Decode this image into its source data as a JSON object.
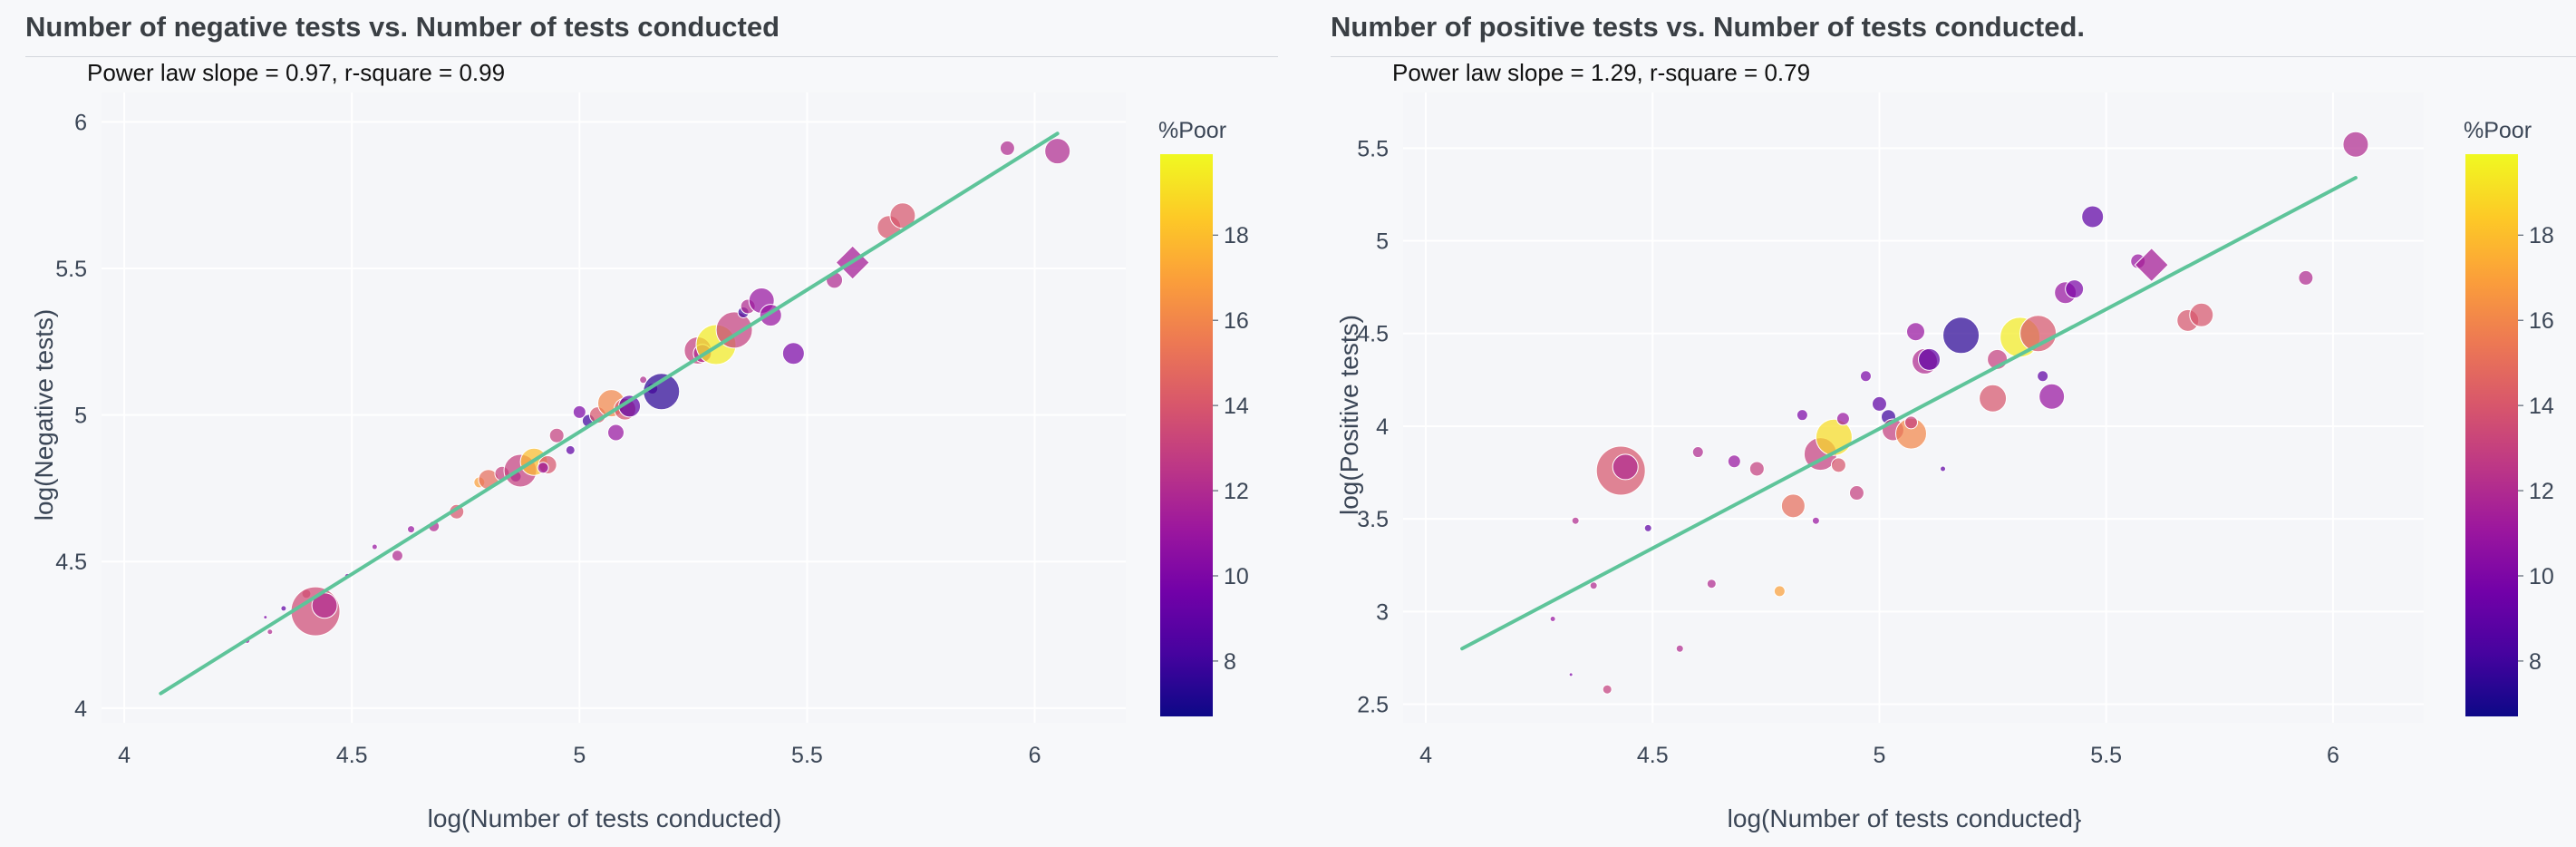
{
  "colors": {
    "line": "#5ec49a",
    "grid": "#ffffff",
    "plot_bg": "#f5f6f9",
    "axis_text": "#3b4656",
    "colorscale": [
      "#0d0887",
      "#46039f",
      "#7201a8",
      "#9c179e",
      "#bd3786",
      "#d8576b",
      "#ed7953",
      "#fb9f3a",
      "#fdca26",
      "#f0f921"
    ]
  },
  "chart_data": [
    {
      "type": "scatter",
      "title": "Number of negative tests vs. Number of tests conducted",
      "annotation": "Power law slope = 0.97, r-square = 0.99",
      "xlabel": "log(Number of tests conducted)",
      "ylabel": "log(Negative tests)",
      "xlim": [
        3.95,
        6.2
      ],
      "ylim": [
        3.95,
        6.1
      ],
      "xticks": [
        "4",
        "4.5",
        "5",
        "5.5",
        "6"
      ],
      "yticks": [
        "4",
        "4.5",
        "5",
        "5.5",
        "6"
      ],
      "colorbar": {
        "title": "%Poor",
        "range": [
          6.7,
          19.9
        ],
        "ticks": [
          "8",
          "10",
          "12",
          "14",
          "16",
          "18"
        ]
      },
      "fit_line": {
        "x": [
          4.08,
          6.05
        ],
        "y": [
          4.05,
          5.96
        ]
      },
      "points": [
        {
          "x": 4.08,
          "y": 4.05,
          "c": 10,
          "s": 2
        },
        {
          "x": 4.27,
          "y": 4.23,
          "c": 11,
          "s": 3
        },
        {
          "x": 4.31,
          "y": 4.31,
          "c": 10,
          "s": 2
        },
        {
          "x": 4.32,
          "y": 4.26,
          "c": 12,
          "s": 3
        },
        {
          "x": 4.35,
          "y": 4.34,
          "c": 9,
          "s": 3
        },
        {
          "x": 4.4,
          "y": 4.39,
          "c": 14,
          "s": 5
        },
        {
          "x": 4.42,
          "y": 4.33,
          "c": 13.5,
          "s": 27
        },
        {
          "x": 4.44,
          "y": 4.35,
          "c": 12,
          "s": 14
        },
        {
          "x": 4.49,
          "y": 4.45,
          "c": 10,
          "s": 3
        },
        {
          "x": 4.55,
          "y": 4.55,
          "c": 11,
          "s": 3
        },
        {
          "x": 4.6,
          "y": 4.52,
          "c": 12,
          "s": 6
        },
        {
          "x": 4.63,
          "y": 4.61,
          "c": 11,
          "s": 4
        },
        {
          "x": 4.68,
          "y": 4.62,
          "c": 12,
          "s": 6
        },
        {
          "x": 4.73,
          "y": 4.67,
          "c": 14,
          "s": 8
        },
        {
          "x": 4.78,
          "y": 4.77,
          "c": 17,
          "s": 6
        },
        {
          "x": 4.8,
          "y": 4.78,
          "c": 15,
          "s": 11
        },
        {
          "x": 4.83,
          "y": 4.8,
          "c": 13,
          "s": 8
        },
        {
          "x": 4.86,
          "y": 4.79,
          "c": 10,
          "s": 6
        },
        {
          "x": 4.87,
          "y": 4.81,
          "c": 13,
          "s": 18
        },
        {
          "x": 4.9,
          "y": 4.84,
          "c": 18,
          "s": 15
        },
        {
          "x": 4.93,
          "y": 4.83,
          "c": 14,
          "s": 10
        },
        {
          "x": 4.92,
          "y": 4.82,
          "c": 11,
          "s": 6
        },
        {
          "x": 4.95,
          "y": 4.93,
          "c": 13,
          "s": 8
        },
        {
          "x": 4.98,
          "y": 4.88,
          "c": 9,
          "s": 5
        },
        {
          "x": 5.0,
          "y": 5.01,
          "c": 10,
          "s": 7
        },
        {
          "x": 5.02,
          "y": 4.98,
          "c": 8,
          "s": 7
        },
        {
          "x": 5.04,
          "y": 5.0,
          "c": 14,
          "s": 9
        },
        {
          "x": 5.07,
          "y": 5.04,
          "c": 16,
          "s": 15
        },
        {
          "x": 5.08,
          "y": 4.94,
          "c": 11,
          "s": 9
        },
        {
          "x": 5.1,
          "y": 5.02,
          "c": 14,
          "s": 12
        },
        {
          "x": 5.11,
          "y": 5.03,
          "c": 9,
          "s": 12
        },
        {
          "x": 5.14,
          "y": 5.12,
          "c": 12,
          "s": 4
        },
        {
          "x": 5.16,
          "y": 5.09,
          "c": 10,
          "s": 6
        },
        {
          "x": 5.18,
          "y": 5.08,
          "c": 7.5,
          "s": 20
        },
        {
          "x": 5.26,
          "y": 5.22,
          "c": 13,
          "s": 15
        },
        {
          "x": 5.27,
          "y": 5.21,
          "c": 12,
          "s": 10
        },
        {
          "x": 5.3,
          "y": 5.24,
          "c": 19.5,
          "s": 22
        },
        {
          "x": 5.34,
          "y": 5.29,
          "c": 13,
          "s": 20
        },
        {
          "x": 5.36,
          "y": 5.35,
          "c": 8,
          "s": 6
        },
        {
          "x": 5.37,
          "y": 5.37,
          "c": 12,
          "s": 8
        },
        {
          "x": 5.4,
          "y": 5.39,
          "c": 11,
          "s": 14
        },
        {
          "x": 5.42,
          "y": 5.34,
          "c": 11,
          "s": 12
        },
        {
          "x": 5.47,
          "y": 5.21,
          "c": 10,
          "s": 12
        },
        {
          "x": 5.56,
          "y": 5.46,
          "c": 12,
          "s": 9
        },
        {
          "x": 5.6,
          "y": 5.52,
          "c": 11.5,
          "s": 16,
          "shape": "diamond"
        },
        {
          "x": 5.68,
          "y": 5.64,
          "c": 14,
          "s": 13
        },
        {
          "x": 5.71,
          "y": 5.68,
          "c": 14,
          "s": 14
        },
        {
          "x": 5.94,
          "y": 5.91,
          "c": 12,
          "s": 8
        },
        {
          "x": 6.05,
          "y": 5.9,
          "c": 12,
          "s": 14
        }
      ]
    },
    {
      "type": "scatter",
      "title": "Number of positive tests vs. Number of tests conducted.",
      "annotation": "Power law slope = 1.29, r-square = 0.79",
      "xlabel": "log(Number of tests conducted}",
      "ylabel": "log(Positive tests)",
      "xlim": [
        3.95,
        6.2
      ],
      "ylim": [
        2.4,
        5.8
      ],
      "xticks": [
        "4",
        "4.5",
        "5",
        "5.5",
        "6"
      ],
      "yticks": [
        "2.5",
        "3",
        "3.5",
        "4",
        "4.5",
        "5",
        "5.5"
      ],
      "colorbar": {
        "title": "%Poor",
        "range": [
          6.7,
          19.9
        ],
        "ticks": [
          "8",
          "10",
          "12",
          "14",
          "16",
          "18"
        ]
      },
      "fit_line": {
        "x": [
          4.08,
          6.05
        ],
        "y": [
          2.8,
          5.34
        ]
      },
      "points": [
        {
          "x": 4.08,
          "y": 2.8,
          "c": 10,
          "s": 2
        },
        {
          "x": 4.28,
          "y": 2.96,
          "c": 11,
          "s": 3
        },
        {
          "x": 4.32,
          "y": 2.66,
          "c": 10,
          "s": 2
        },
        {
          "x": 4.33,
          "y": 3.49,
          "c": 12,
          "s": 4
        },
        {
          "x": 4.37,
          "y": 3.14,
          "c": 12,
          "s": 4
        },
        {
          "x": 4.4,
          "y": 2.58,
          "c": 13,
          "s": 5
        },
        {
          "x": 4.43,
          "y": 3.76,
          "c": 14,
          "s": 27
        },
        {
          "x": 4.44,
          "y": 3.78,
          "c": 12,
          "s": 14
        },
        {
          "x": 4.49,
          "y": 3.45,
          "c": 9,
          "s": 4
        },
        {
          "x": 4.56,
          "y": 2.8,
          "c": 12,
          "s": 4
        },
        {
          "x": 4.6,
          "y": 3.86,
          "c": 12,
          "s": 6
        },
        {
          "x": 4.63,
          "y": 3.15,
          "c": 12,
          "s": 5
        },
        {
          "x": 4.68,
          "y": 3.81,
          "c": 11,
          "s": 7
        },
        {
          "x": 4.73,
          "y": 3.77,
          "c": 13,
          "s": 8
        },
        {
          "x": 4.78,
          "y": 3.11,
          "c": 17,
          "s": 6
        },
        {
          "x": 4.81,
          "y": 3.57,
          "c": 15,
          "s": 13
        },
        {
          "x": 4.83,
          "y": 4.06,
          "c": 10,
          "s": 6
        },
        {
          "x": 4.86,
          "y": 3.49,
          "c": 11,
          "s": 4
        },
        {
          "x": 4.87,
          "y": 3.85,
          "c": 13,
          "s": 18
        },
        {
          "x": 4.9,
          "y": 3.94,
          "c": 19,
          "s": 20
        },
        {
          "x": 4.91,
          "y": 3.79,
          "c": 14,
          "s": 8
        },
        {
          "x": 4.92,
          "y": 4.04,
          "c": 11,
          "s": 7
        },
        {
          "x": 4.95,
          "y": 3.64,
          "c": 13,
          "s": 8
        },
        {
          "x": 4.97,
          "y": 4.27,
          "c": 10,
          "s": 6
        },
        {
          "x": 5.0,
          "y": 4.12,
          "c": 9,
          "s": 8
        },
        {
          "x": 5.02,
          "y": 4.05,
          "c": 8,
          "s": 8
        },
        {
          "x": 5.03,
          "y": 3.98,
          "c": 13,
          "s": 12
        },
        {
          "x": 5.07,
          "y": 3.96,
          "c": 16,
          "s": 17
        },
        {
          "x": 5.07,
          "y": 4.02,
          "c": 13,
          "s": 7
        },
        {
          "x": 5.08,
          "y": 4.51,
          "c": 11,
          "s": 10
        },
        {
          "x": 5.1,
          "y": 4.35,
          "c": 12,
          "s": 14
        },
        {
          "x": 5.11,
          "y": 4.36,
          "c": 9,
          "s": 12
        },
        {
          "x": 5.14,
          "y": 3.77,
          "c": 9,
          "s": 3
        },
        {
          "x": 5.18,
          "y": 4.49,
          "c": 7.5,
          "s": 20
        },
        {
          "x": 5.25,
          "y": 4.15,
          "c": 14,
          "s": 15
        },
        {
          "x": 5.26,
          "y": 4.36,
          "c": 13,
          "s": 11
        },
        {
          "x": 5.31,
          "y": 4.48,
          "c": 19.5,
          "s": 22
        },
        {
          "x": 5.35,
          "y": 4.5,
          "c": 14,
          "s": 20
        },
        {
          "x": 5.36,
          "y": 4.27,
          "c": 9,
          "s": 6
        },
        {
          "x": 5.38,
          "y": 4.16,
          "c": 11,
          "s": 14
        },
        {
          "x": 5.41,
          "y": 4.72,
          "c": 11,
          "s": 12
        },
        {
          "x": 5.43,
          "y": 4.74,
          "c": 10,
          "s": 10
        },
        {
          "x": 5.47,
          "y": 5.13,
          "c": 9,
          "s": 12
        },
        {
          "x": 5.57,
          "y": 4.89,
          "c": 11,
          "s": 8
        },
        {
          "x": 5.6,
          "y": 4.87,
          "c": 11.5,
          "s": 16,
          "shape": "diamond"
        },
        {
          "x": 5.68,
          "y": 4.57,
          "c": 14,
          "s": 12
        },
        {
          "x": 5.71,
          "y": 4.6,
          "c": 14,
          "s": 13
        },
        {
          "x": 5.94,
          "y": 4.8,
          "c": 12,
          "s": 8
        },
        {
          "x": 6.05,
          "y": 5.52,
          "c": 12,
          "s": 14
        }
      ]
    }
  ]
}
